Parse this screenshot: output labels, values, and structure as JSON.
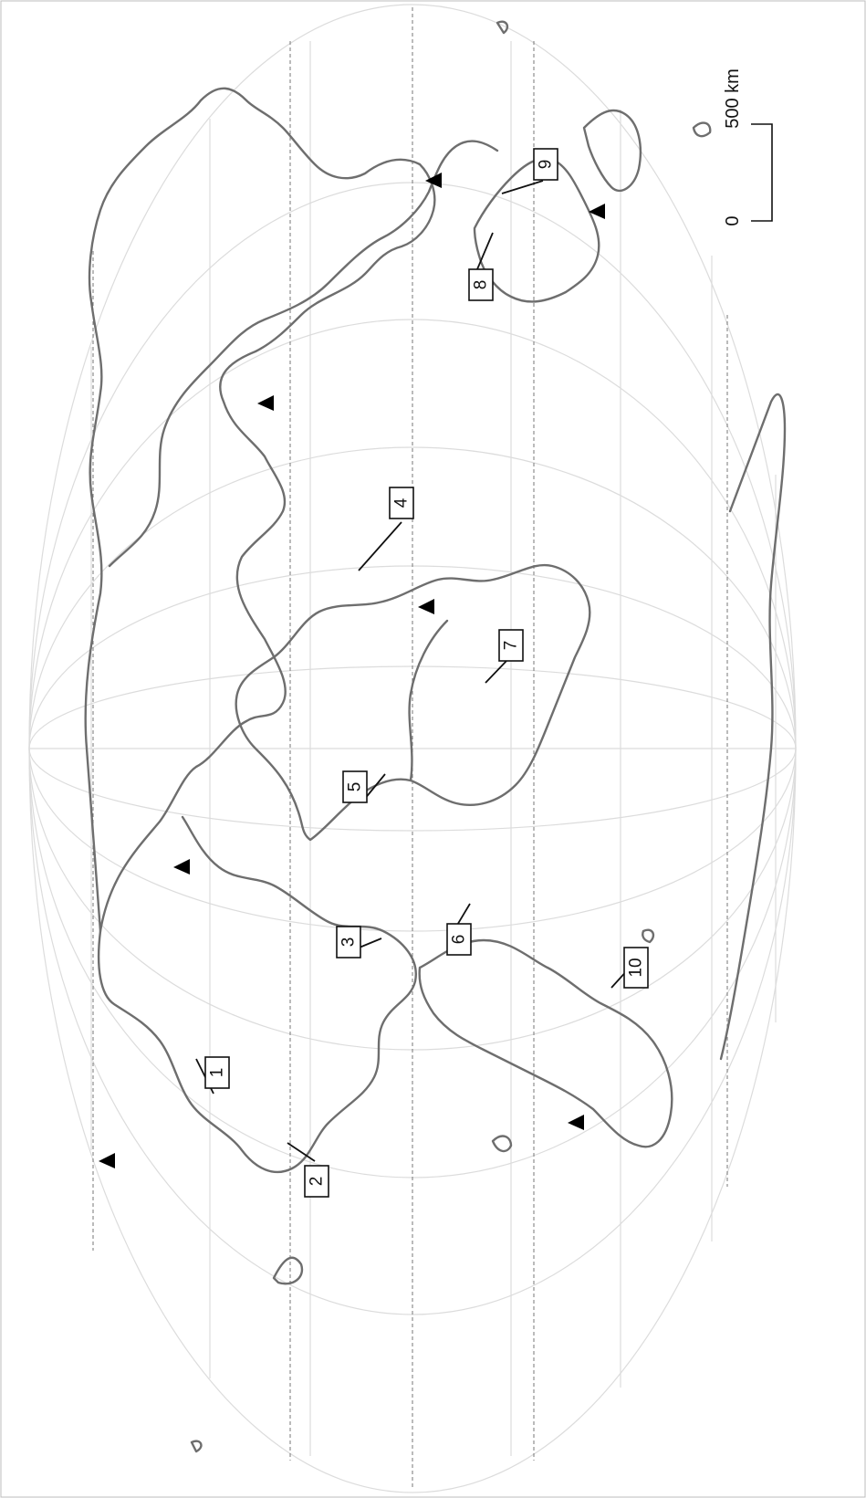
{
  "labels": [
    {
      "id": "1",
      "text": "1"
    },
    {
      "id": "2",
      "text": "2"
    },
    {
      "id": "3",
      "text": "3"
    },
    {
      "id": "4",
      "text": "4"
    },
    {
      "id": "5",
      "text": "5"
    },
    {
      "id": "6",
      "text": "6"
    },
    {
      "id": "7",
      "text": "7"
    },
    {
      "id": "8",
      "text": "8"
    },
    {
      "id": "9",
      "text": "9"
    },
    {
      "id": "10",
      "text": "10"
    }
  ],
  "scale_bar": {
    "zero_label": "0",
    "distance_label": "500 km"
  },
  "colors": {
    "coastline": "#6e6e6e",
    "graticule": "#dcdcdc",
    "dashed_lines": "#777777",
    "markers": "#000000"
  },
  "marker_icon": "black-triangle-icon"
}
